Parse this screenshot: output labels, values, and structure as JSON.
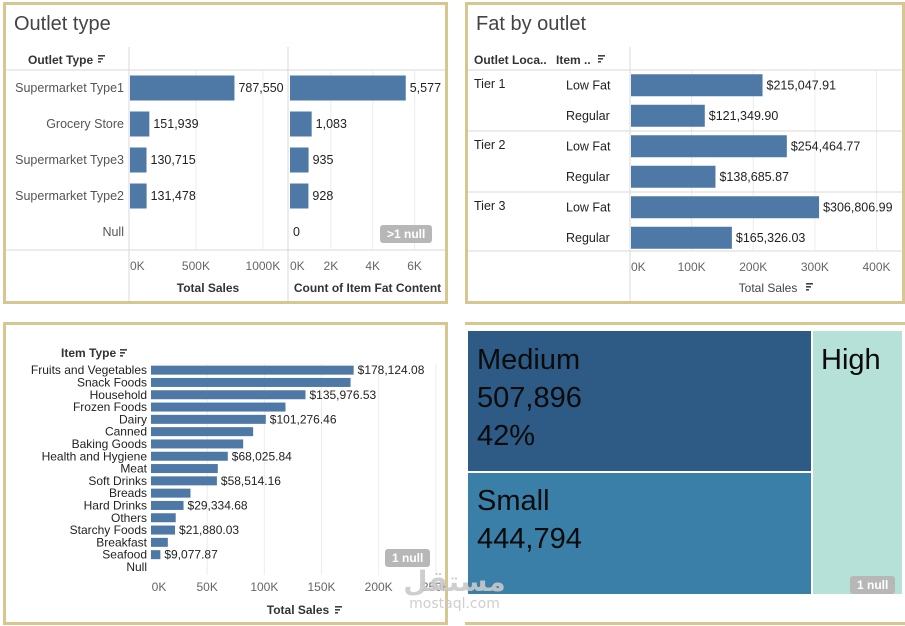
{
  "watermark": {
    "arabic": "مستقل",
    "latin": "mostaql.com"
  },
  "chart_data": [
    {
      "id": "outlet_type",
      "type": "bar",
      "title": "Outlet type",
      "dimension_header": "Outlet Type",
      "categories": [
        "Supermarket Type1",
        "Grocery Store",
        "Supermarket Type3",
        "Supermarket Type2",
        "Null"
      ],
      "series": [
        {
          "name": "Total Sales",
          "values": [
            787550,
            151939,
            130715,
            131478,
            null
          ],
          "labels": [
            "787,550",
            "151,939",
            "130,715",
            "131,478",
            ""
          ],
          "xlabel": "Total Sales",
          "xlim": [
            0,
            1180000
          ],
          "ticks": [
            0,
            500000,
            1000000
          ],
          "tick_labels": [
            "0K",
            "500K",
            "1000K"
          ]
        },
        {
          "name": "Count of Item Fat Content",
          "values": [
            5577,
            1083,
            935,
            928,
            0
          ],
          "labels": [
            "5,577",
            "1,083",
            "935",
            "928",
            "0"
          ],
          "xlabel": "Count of Item Fat Content",
          "xlim": [
            0,
            7500
          ],
          "ticks": [
            0,
            2000,
            4000,
            6000
          ],
          "tick_labels": [
            "0K",
            "2K",
            "4K",
            "6K"
          ]
        }
      ],
      "null_badge": ">1 null",
      "color": "#4e79a7",
      "grid": true
    },
    {
      "id": "fat_by_outlet",
      "type": "bar",
      "title": "Fat by outlet",
      "row_headers": [
        "Outlet Loca..",
        "Item .."
      ],
      "groups": [
        {
          "name": "Tier 1",
          "rows": [
            {
              "label": "Low Fat",
              "value": 215047.91,
              "text": "$215,047.91"
            },
            {
              "label": "Regular",
              "value": 121349.9,
              "text": "$121,349.90"
            }
          ]
        },
        {
          "name": "Tier 2",
          "rows": [
            {
              "label": "Low Fat",
              "value": 254464.77,
              "text": "$254,464.77"
            },
            {
              "label": "Regular",
              "value": 138685.87,
              "text": "$138,685.87"
            }
          ]
        },
        {
          "name": "Tier 3",
          "rows": [
            {
              "label": "Low Fat",
              "value": 306806.99,
              "text": "$306,806.99"
            },
            {
              "label": "Regular",
              "value": 165326.03,
              "text": "$165,326.03"
            }
          ]
        }
      ],
      "xlabel": "Total Sales",
      "xlim": [
        0,
        430000
      ],
      "ticks": [
        0,
        100000,
        200000,
        300000,
        400000
      ],
      "tick_labels": [
        "0K",
        "100K",
        "200K",
        "300K",
        "400K"
      ],
      "color": "#4e79a7",
      "grid": true
    },
    {
      "id": "item_type",
      "type": "bar",
      "dimension_header": "Item Type",
      "categories": [
        "Fruits and Vegetables",
        "Snack Foods",
        "Household",
        "Frozen Foods",
        "Dairy",
        "Canned",
        "Baking Goods",
        "Health and Hygiene",
        "Meat",
        "Soft Drinks",
        "Breads",
        "Hard Drinks",
        "Others",
        "Starchy Foods",
        "Breakfast",
        "Seafood",
        "Null"
      ],
      "values": [
        178124.08,
        175400,
        135976.53,
        118500,
        101276.46,
        90200,
        81500,
        68025.84,
        59300,
        58514.16,
        35400,
        29334.68,
        22500,
        21880.03,
        15600,
        9077.87,
        null
      ],
      "labels": [
        "$178,124.08",
        "",
        "$135,976.53",
        "",
        "$101,276.46",
        "",
        "",
        "$68,025.84",
        "",
        "$58,514.16",
        "",
        "$29,334.68",
        "",
        "$21,880.03",
        "",
        "$9,077.87",
        ""
      ],
      "xlabel": "Total Sales",
      "xlim": [
        0,
        265000
      ],
      "ticks": [
        0,
        50000,
        100000,
        150000,
        200000,
        250000
      ],
      "tick_labels": [
        "0K",
        "50K",
        "100K",
        "150K",
        "200K",
        "250K"
      ],
      "null_badge": "1 null",
      "color": "#4e79a7",
      "grid": true
    },
    {
      "id": "outlet_size",
      "type": "treemap",
      "cells": [
        {
          "name": "Medium",
          "value_text": "507,896",
          "share_text": "42%",
          "color": "#2e5a86"
        },
        {
          "name": "Small",
          "value_text": "444,794",
          "share_text": "",
          "color": "#3a7fa8"
        },
        {
          "name": "High",
          "value_text": "",
          "share_text": "",
          "color": "#b5e1d8"
        }
      ],
      "null_badge": "1 null"
    }
  ]
}
